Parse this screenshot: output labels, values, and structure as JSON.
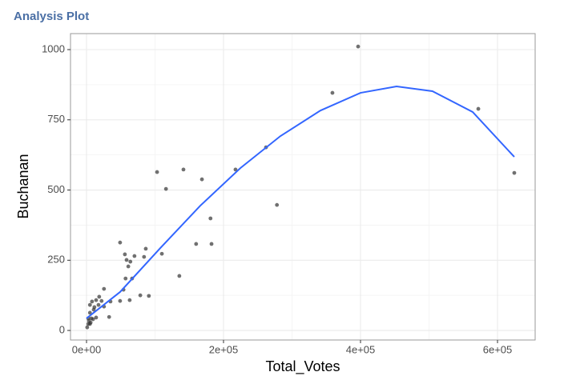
{
  "chart_data": {
    "type": "scatter",
    "title": "Analysis Plot",
    "x_label": "Total_Votes",
    "y_label": "Buchanan",
    "xlim": [
      -23392,
      654971
    ],
    "ylim": [
      -34,
      1057
    ],
    "xticks": [
      {
        "value": 0,
        "label": "0e+00"
      },
      {
        "value": 200000,
        "label": "2e+05"
      },
      {
        "value": 400000,
        "label": "4e+05"
      },
      {
        "value": 600000,
        "label": "6e+05"
      }
    ],
    "yticks": [
      0,
      250,
      500,
      750,
      1000
    ],
    "minor_xticks": [
      100000,
      300000,
      500000
    ],
    "minor_yticks": [
      125,
      375,
      625,
      875
    ],
    "grid": true,
    "series": [
      {
        "type": "scatter",
        "color": "#333333",
        "x": [
          396500,
          359000,
          572000,
          624500,
          262000,
          217500,
          141500,
          103000,
          168500,
          116000,
          278000,
          181000,
          49000,
          160000,
          182500,
          86500,
          110000,
          56000,
          70000,
          84000,
          58500,
          64000,
          61000,
          135500,
          57000,
          66500,
          25500,
          54000,
          78500,
          91000,
          63000,
          49000,
          18500,
          14000,
          22000,
          8000,
          35000,
          5000,
          11500,
          17500,
          25500,
          5000,
          10500,
          33000,
          14000,
          7000,
          3500,
          6000,
          2500,
          1000,
          2500,
          5000,
          9500
        ],
        "values": [
          1011,
          846,
          789,
          561,
          652,
          573,
          573,
          564,
          538,
          504,
          447,
          399,
          313,
          308,
          308,
          291,
          273,
          271,
          265,
          262,
          251,
          245,
          228,
          194,
          185,
          185,
          148,
          145,
          125,
          123,
          108,
          105,
          120,
          108,
          105,
          103,
          103,
          91,
          83,
          91,
          85,
          63,
          74,
          48,
          46,
          43,
          34,
          28,
          23,
          11,
          43,
          23,
          40
        ]
      },
      {
        "type": "line",
        "color": "#3366ff",
        "x": [
          0,
          49000,
          107600,
          166000,
          224600,
          283000,
          341500,
          400000,
          452600,
          505000,
          563700,
          624500
        ],
        "values": [
          43,
          137,
          293,
          444,
          578,
          692,
          783,
          846,
          869,
          852,
          778,
          618
        ]
      }
    ]
  }
}
